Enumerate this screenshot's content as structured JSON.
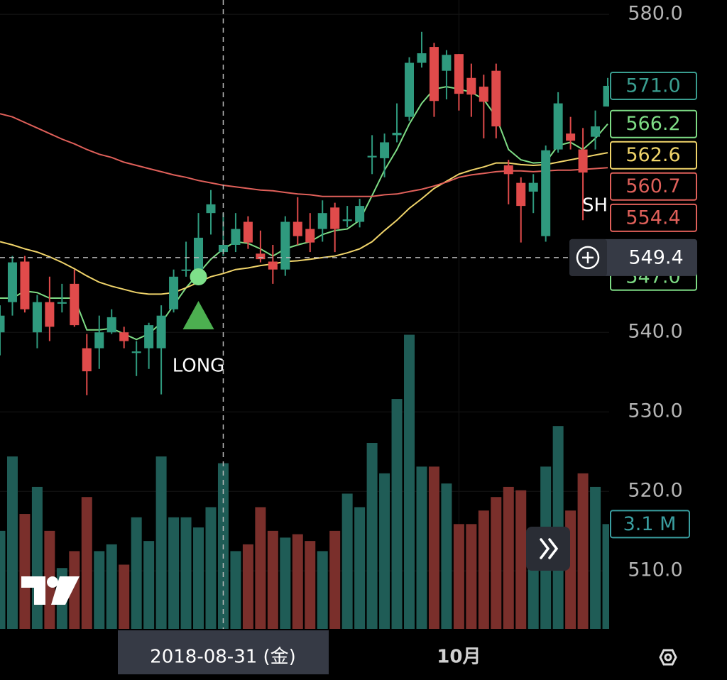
{
  "chart_data": {
    "type": "candlestick",
    "categories": [
      null,
      null,
      null,
      null,
      null,
      null,
      null,
      null,
      null,
      null,
      null,
      null,
      null,
      null,
      null,
      null,
      null,
      null,
      null,
      null,
      null,
      null,
      null,
      null,
      null,
      null,
      null,
      null,
      null,
      null,
      null,
      null,
      null,
      null,
      null,
      null,
      null,
      "10月",
      null,
      null,
      null,
      null,
      null,
      null,
      null,
      null,
      null,
      null,
      null,
      null
    ],
    "candles": {
      "open": [
        540.0,
        543.8,
        548.9,
        540.0,
        543.8,
        543.6,
        546.1,
        538.0,
        538.0,
        540.0,
        540.0,
        537.4,
        538.0,
        538.0,
        542.9,
        547.8,
        547.9,
        555.0,
        550.1,
        551.0,
        553.9,
        549.9,
        548.9,
        547.9,
        553.9,
        553.0,
        553.0,
        555.7,
        554.0,
        553.9,
        562.0,
        561.9,
        564.8,
        567.1,
        573.9,
        575.9,
        572.9,
        575.0,
        572.0,
        570.9,
        572.9,
        561.0,
        558.8,
        557.7,
        552.1,
        563.0,
        565.0,
        563.0,
        564.6,
        568.4
      ],
      "high": [
        543.4,
        549.6,
        549.6,
        544.7,
        547.0,
        546.1,
        547.9,
        539.8,
        542.1,
        542.9,
        540.7,
        538.9,
        541.2,
        543.4,
        547.9,
        551.4,
        555.0,
        557.9,
        555.0,
        555.0,
        554.6,
        552.8,
        551.0,
        554.6,
        557.0,
        555.0,
        556.6,
        556.3,
        555.9,
        556.8,
        564.8,
        565.0,
        568.8,
        574.6,
        577.8,
        576.4,
        575.5,
        575.0,
        573.8,
        572.4,
        573.8,
        561.7,
        559.5,
        559.9,
        563.5,
        570.2,
        567.1,
        565.7,
        567.9,
        572.0
      ],
      "low": [
        537.1,
        542.1,
        542.5,
        538.0,
        538.9,
        542.5,
        540.7,
        532.1,
        535.4,
        539.8,
        538.0,
        534.5,
        535.4,
        532.2,
        542.5,
        547.0,
        546.5,
        552.3,
        549.6,
        550.1,
        550.5,
        548.8,
        546.1,
        547.1,
        551.0,
        550.1,
        551.4,
        550.1,
        553.2,
        553.2,
        559.9,
        559.5,
        563.9,
        566.6,
        573.3,
        567.1,
        569.3,
        567.9,
        567.1,
        564.4,
        564.4,
        556.1,
        551.3,
        555.0,
        551.4,
        562.6,
        563.0,
        554.1,
        563.0,
        568.4
      ],
      "close": [
        542.1,
        548.8,
        542.9,
        543.8,
        540.7,
        543.8,
        540.9,
        535.1,
        540.0,
        541.9,
        538.9,
        537.6,
        540.9,
        542.1,
        547.0,
        547.9,
        551.9,
        556.1,
        551.0,
        553.0,
        551.3,
        549.2,
        547.9,
        553.9,
        552.1,
        551.3,
        555.0,
        553.0,
        554.2,
        555.9,
        562.2,
        563.9,
        565.1,
        573.9,
        575.1,
        569.1,
        574.9,
        570.0,
        569.9,
        569.0,
        565.9,
        559.9,
        555.9,
        558.8,
        562.9,
        568.8,
        564.1,
        560.1,
        565.9,
        571.0
      ]
    },
    "up_color": "#2f9a7e",
    "down_color": "#e04b4b",
    "lines": [
      {
        "color": "#7edc85",
        "values": [
          544.3,
          544.3,
          545.2,
          545.0,
          544.3,
          544.3,
          544.3,
          540.3,
          540.3,
          540.5,
          539.8,
          539.1,
          539.8,
          541.2,
          543.4,
          545.6,
          547.4,
          549.2,
          550.5,
          551.4,
          551.2,
          550.5,
          549.6,
          550.5,
          551.0,
          551.4,
          552.3,
          552.8,
          553.0,
          554.1,
          557.2,
          560.4,
          563.0,
          566.2,
          568.8,
          570.6,
          570.9,
          570.6,
          570.2,
          569.3,
          567.1,
          563.0,
          561.7,
          561.3,
          561.4,
          563.5,
          563.9,
          563.0,
          564.4,
          566.2
        ]
      },
      {
        "color": "#f0d46a",
        "values": [
          551.4,
          551.0,
          550.5,
          550.1,
          549.5,
          548.8,
          548.0,
          547.1,
          546.3,
          545.8,
          545.4,
          545.0,
          544.8,
          544.8,
          545.0,
          545.6,
          546.3,
          547.0,
          547.4,
          547.9,
          548.1,
          548.4,
          548.6,
          548.9,
          549.0,
          549.2,
          549.4,
          549.6,
          550.0,
          550.5,
          551.4,
          552.8,
          554.1,
          555.6,
          556.8,
          558.1,
          559.0,
          559.9,
          560.4,
          560.8,
          561.3,
          561.3,
          561.1,
          561.0,
          561.1,
          561.4,
          561.7,
          562.0,
          562.3,
          562.6
        ]
      },
      {
        "color": "#e0605a",
        "values": [
          567.5,
          567.1,
          566.4,
          565.7,
          565.0,
          564.3,
          563.7,
          563.0,
          562.4,
          562.0,
          561.4,
          561.0,
          560.6,
          560.2,
          559.8,
          559.5,
          559.1,
          558.8,
          558.5,
          558.3,
          558.1,
          557.9,
          557.8,
          557.6,
          557.4,
          557.3,
          557.1,
          557.1,
          557.1,
          557.1,
          557.1,
          557.3,
          557.4,
          557.7,
          558.0,
          558.4,
          558.9,
          559.5,
          559.8,
          560.0,
          560.2,
          560.3,
          560.3,
          560.2,
          560.3,
          560.4,
          560.4,
          560.5,
          560.6,
          560.7
        ]
      }
    ],
    "volume": {
      "values": [
        2.9,
        5.1,
        3.4,
        4.2,
        2.9,
        1.8,
        2.3,
        3.9,
        2.3,
        2.5,
        1.9,
        3.3,
        2.6,
        5.1,
        3.3,
        3.3,
        3.0,
        3.6,
        4.9,
        2.3,
        2.5,
        3.6,
        2.9,
        2.7,
        2.8,
        2.6,
        2.3,
        2.9,
        4.0,
        3.6,
        5.5,
        4.6,
        6.8,
        8.7,
        4.8,
        4.8,
        4.3,
        3.1,
        3.1,
        3.5,
        3.9,
        4.2,
        4.1,
        2.1,
        4.8,
        6.0,
        3.5,
        4.6,
        4.2,
        3.1
      ],
      "up_color": "#1f5c56",
      "down_color": "#7a2f2b",
      "last": {
        "value": 3.1,
        "label": "3.1 M"
      },
      "label_color": "#3a9ea0"
    },
    "ylim": [
      502.7,
      581.8
    ],
    "y2lim": [
      0,
      18.6
    ],
    "yticks": [
      {
        "value": 580,
        "label": "580.0"
      },
      {
        "value": 540,
        "label": "540.0"
      },
      {
        "value": 530,
        "label": "530.0"
      },
      {
        "value": 520,
        "label": "520.0"
      },
      {
        "value": 510,
        "label": "510.0"
      }
    ],
    "grid": true,
    "price_labels": [
      {
        "value": 571.0,
        "label": "571.0",
        "color": "#3a9e90"
      },
      {
        "value": 566.2,
        "label": "566.2",
        "color": "#7edc85"
      },
      {
        "value": 562.6,
        "label": "562.6",
        "color": "#f0d46a"
      },
      {
        "value": 560.7,
        "label": "560.7",
        "color": "#e0605a"
      },
      {
        "value": 554.4,
        "label": "554.4",
        "color": "#e0605a"
      },
      {
        "value": 547.0,
        "label": "547.0",
        "color": "#7edc85"
      }
    ],
    "crosshair": {
      "date": "2018-08-31 (金)",
      "price": {
        "value": 549.4,
        "label": "549.4"
      }
    },
    "annotations": [
      "LONG",
      "SH"
    ]
  }
}
